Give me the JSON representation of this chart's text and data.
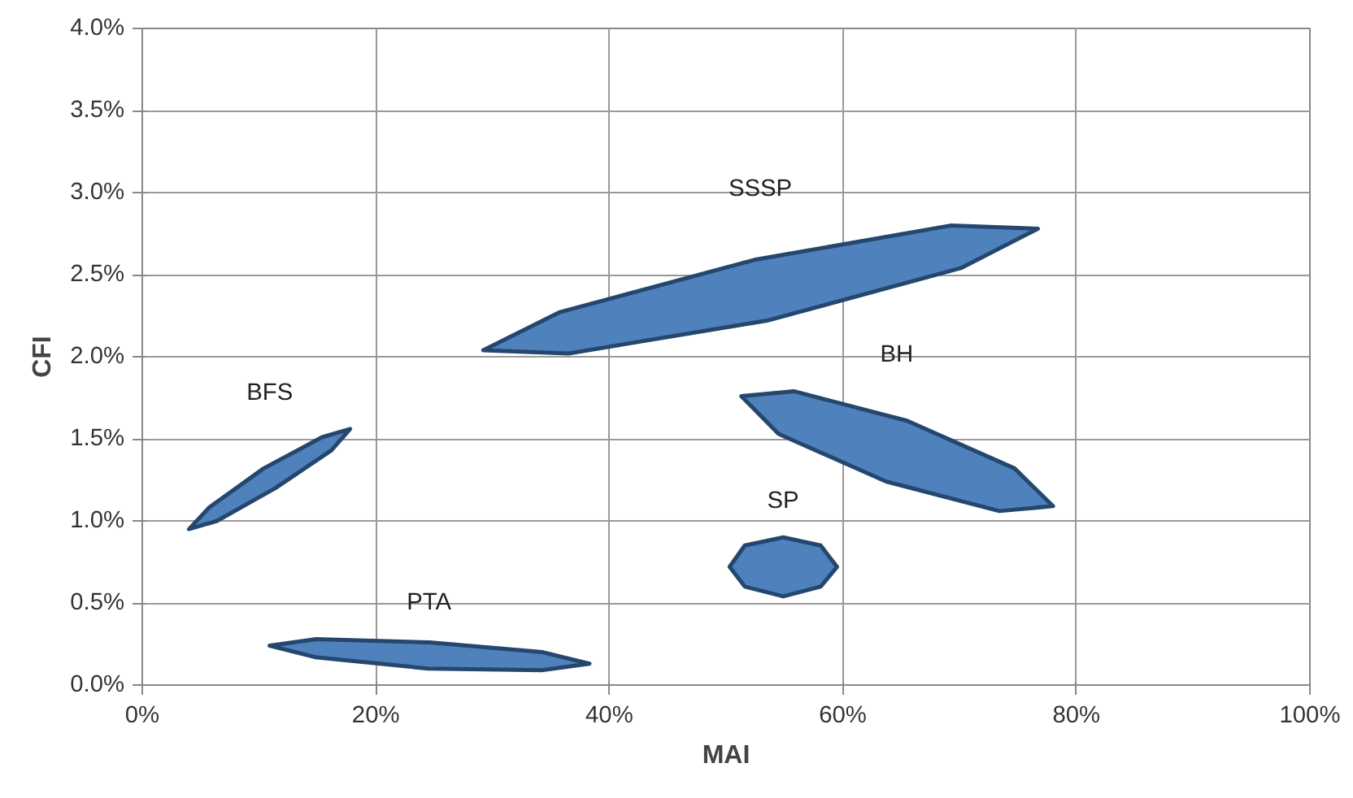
{
  "chart_data": {
    "type": "area",
    "xlabel": "MAI",
    "ylabel": "CFI",
    "grid": true,
    "xlim": [
      0,
      100
    ],
    "xticks": [
      {
        "value": 0,
        "label": "0%"
      },
      {
        "value": 20,
        "label": "20%"
      },
      {
        "value": 40,
        "label": "40%"
      },
      {
        "value": 60,
        "label": "60%"
      },
      {
        "value": 80,
        "label": "80%"
      },
      {
        "value": 100,
        "label": "100%"
      }
    ],
    "ylim": [
      0,
      4
    ],
    "yticks": [
      {
        "value": 0,
        "label": "0.0%"
      },
      {
        "value": 0.5,
        "label": "0.5%"
      },
      {
        "value": 1,
        "label": "1.0%"
      },
      {
        "value": 1.5,
        "label": "1.5%"
      },
      {
        "value": 2,
        "label": "2.0%"
      },
      {
        "value": 2.5,
        "label": "2.5%"
      },
      {
        "value": 3,
        "label": "3.0%"
      },
      {
        "value": 3.5,
        "label": "3.5%"
      },
      {
        "value": 4,
        "label": "4.0%"
      }
    ],
    "series": [
      {
        "name": "SSSP",
        "color": "#4f81bd",
        "x": [
          76.7,
          69.3,
          52.4,
          35.7,
          29.2,
          36.5,
          53.5,
          70.1
        ],
        "values": [
          2.78,
          2.8,
          2.59,
          2.27,
          2.04,
          2.02,
          2.22,
          2.54
        ]
      },
      {
        "name": "BH",
        "color": "#4f81bd",
        "x": [
          78.0,
          73.4,
          63.7,
          54.5,
          51.3,
          55.8,
          65.5,
          74.7
        ],
        "values": [
          1.09,
          1.06,
          1.24,
          1.53,
          1.76,
          1.79,
          1.61,
          1.32
        ]
      },
      {
        "name": "BFS",
        "color": "#4f81bd",
        "x": [
          17.8,
          15.4,
          10.4,
          5.7,
          4.0,
          6.4,
          11.4,
          16.2
        ],
        "values": [
          1.56,
          1.51,
          1.32,
          1.08,
          0.95,
          1.0,
          1.2,
          1.43
        ]
      },
      {
        "name": "SP",
        "color": "#4f81bd",
        "x": [
          59.5,
          58.1,
          54.9,
          51.6,
          50.3,
          51.6,
          54.9,
          58.1
        ],
        "values": [
          0.72,
          0.85,
          0.9,
          0.85,
          0.72,
          0.6,
          0.54,
          0.6
        ]
      },
      {
        "name": "PTA",
        "color": "#4f81bd",
        "x": [
          38.3,
          34.2,
          24.5,
          14.8,
          10.9,
          14.9,
          24.6,
          34.3
        ],
        "values": [
          0.13,
          0.09,
          0.1,
          0.17,
          0.24,
          0.28,
          0.26,
          0.2
        ]
      }
    ]
  }
}
